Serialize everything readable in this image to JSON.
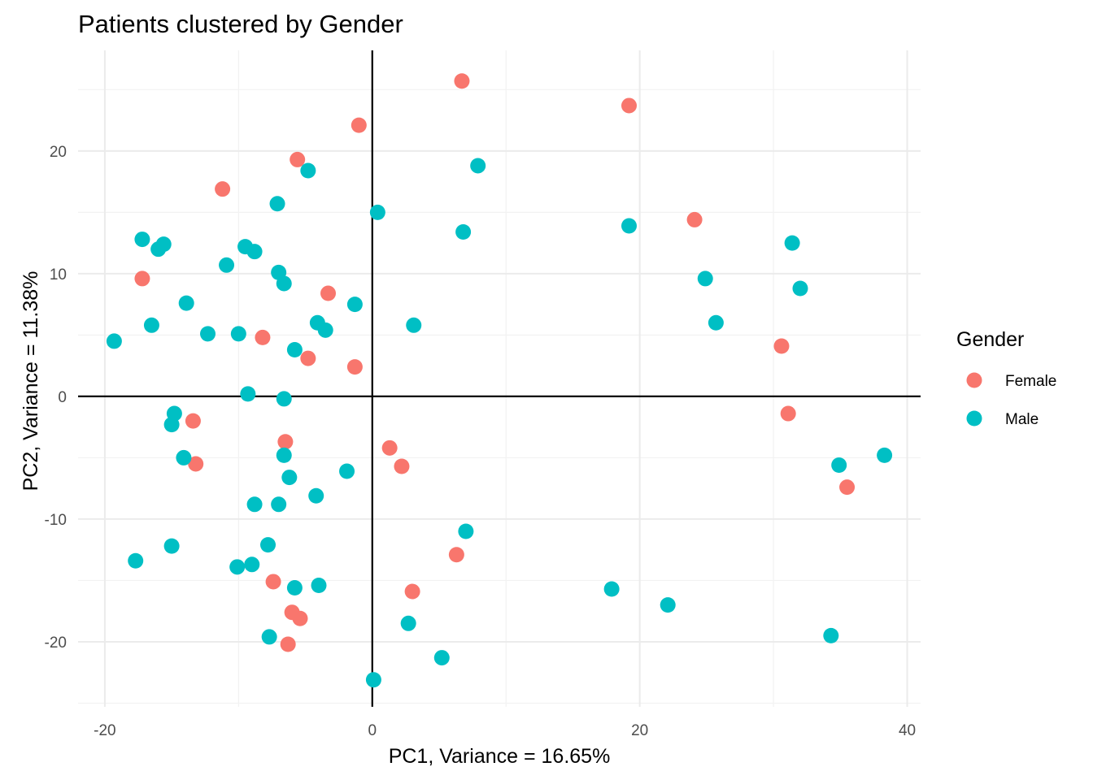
{
  "colors": {
    "Female": "#F8766D",
    "Male": "#00BFC4"
  },
  "chart_data": {
    "type": "scatter",
    "title": "Patients clustered by Gender",
    "xlabel": "PC1, Variance = 16.65%",
    "ylabel": "PC2, Variance = 11.38%",
    "xlim": [
      -22,
      41
    ],
    "ylim": [
      -25.3,
      28.2
    ],
    "x_ticks": [
      -20,
      0,
      20,
      40
    ],
    "y_ticks": [
      -20,
      -10,
      0,
      10,
      20
    ],
    "x_tick_labels": [
      "-20",
      "0",
      "20",
      "40"
    ],
    "y_tick_labels": [
      "-20",
      "-10",
      "0",
      "10",
      "20"
    ],
    "reference_lines": {
      "x": 0,
      "y": 0
    },
    "grid": true,
    "legend": {
      "title": "Gender",
      "position": "right",
      "entries": [
        "Female",
        "Male"
      ]
    },
    "series": [
      {
        "name": "Female",
        "points": [
          [
            6.7,
            25.7
          ],
          [
            19.2,
            23.7
          ],
          [
            -1.0,
            22.1
          ],
          [
            -5.6,
            19.3
          ],
          [
            -11.2,
            16.9
          ],
          [
            24.1,
            14.4
          ],
          [
            -17.2,
            9.6
          ],
          [
            -3.3,
            8.4
          ],
          [
            -8.2,
            4.8
          ],
          [
            30.6,
            4.1
          ],
          [
            -4.8,
            3.1
          ],
          [
            -1.3,
            2.4
          ],
          [
            31.1,
            -1.4
          ],
          [
            -13.4,
            -2.0
          ],
          [
            -6.5,
            -3.7
          ],
          [
            1.3,
            -4.2
          ],
          [
            2.2,
            -5.7
          ],
          [
            -13.2,
            -5.5
          ],
          [
            35.5,
            -7.4
          ],
          [
            6.3,
            -12.9
          ],
          [
            3.0,
            -15.9
          ],
          [
            -7.4,
            -15.1
          ],
          [
            -6.0,
            -17.6
          ],
          [
            -5.4,
            -18.1
          ],
          [
            -6.3,
            -20.2
          ]
        ]
      },
      {
        "name": "Male",
        "points": [
          [
            7.9,
            18.8
          ],
          [
            -4.8,
            18.4
          ],
          [
            -7.1,
            15.7
          ],
          [
            0.4,
            15.0
          ],
          [
            6.8,
            13.4
          ],
          [
            19.2,
            13.9
          ],
          [
            -17.2,
            12.8
          ],
          [
            -15.6,
            12.4
          ],
          [
            -16.0,
            12.0
          ],
          [
            -9.5,
            12.2
          ],
          [
            -8.8,
            11.8
          ],
          [
            31.4,
            12.5
          ],
          [
            -10.9,
            10.7
          ],
          [
            -7.0,
            10.1
          ],
          [
            -6.6,
            9.2
          ],
          [
            24.9,
            9.6
          ],
          [
            32.0,
            8.8
          ],
          [
            -13.9,
            7.6
          ],
          [
            -1.3,
            7.5
          ],
          [
            -4.1,
            6.0
          ],
          [
            -3.5,
            5.4
          ],
          [
            -16.5,
            5.8
          ],
          [
            3.1,
            5.8
          ],
          [
            25.7,
            6.0
          ],
          [
            -19.3,
            4.5
          ],
          [
            -12.3,
            5.1
          ],
          [
            -10.0,
            5.1
          ],
          [
            -5.8,
            3.8
          ],
          [
            -9.3,
            0.2
          ],
          [
            -6.6,
            -0.2
          ],
          [
            -14.8,
            -1.4
          ],
          [
            -15.0,
            -2.3
          ],
          [
            -14.1,
            -5.0
          ],
          [
            -6.6,
            -4.8
          ],
          [
            -6.2,
            -6.6
          ],
          [
            -1.9,
            -6.1
          ],
          [
            -4.2,
            -8.1
          ],
          [
            -8.8,
            -8.8
          ],
          [
            -7.0,
            -8.8
          ],
          [
            34.9,
            -5.6
          ],
          [
            38.3,
            -4.8
          ],
          [
            7.0,
            -11.0
          ],
          [
            -17.7,
            -13.4
          ],
          [
            -15.0,
            -12.2
          ],
          [
            -10.1,
            -13.9
          ],
          [
            -9.0,
            -13.7
          ],
          [
            -7.8,
            -12.1
          ],
          [
            -5.8,
            -15.6
          ],
          [
            -4.0,
            -15.4
          ],
          [
            17.9,
            -15.7
          ],
          [
            22.1,
            -17.0
          ],
          [
            2.7,
            -18.5
          ],
          [
            -7.7,
            -19.6
          ],
          [
            5.2,
            -21.3
          ],
          [
            34.3,
            -19.5
          ],
          [
            0.1,
            -23.1
          ]
        ]
      }
    ]
  }
}
